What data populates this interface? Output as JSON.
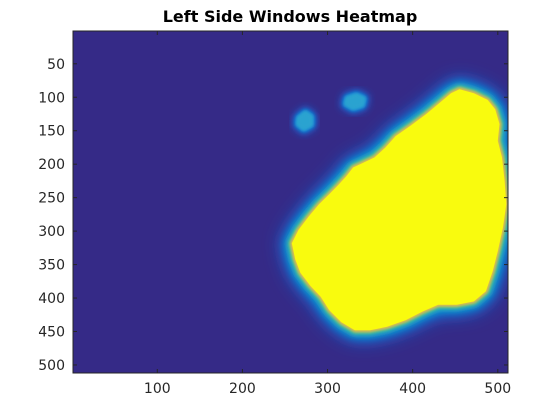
{
  "chart_data": {
    "type": "heatmap",
    "title": "Left Side Windows Heatmap",
    "xlabel": "",
    "ylabel": "",
    "xlim": [
      1,
      512
    ],
    "ylim": [
      1,
      512
    ],
    "y_reversed": true,
    "x_ticks": [
      100,
      200,
      300,
      400,
      500
    ],
    "x_tick_labels": [
      "100",
      "200",
      "300",
      "400",
      "500"
    ],
    "y_ticks": [
      50,
      100,
      150,
      200,
      250,
      300,
      350,
      400,
      450,
      500
    ],
    "y_tick_labels": [
      "50",
      "100",
      "150",
      "200",
      "250",
      "300",
      "350",
      "400",
      "450",
      "500"
    ],
    "grid": false,
    "colormap": "parula",
    "background_color": "#352a87",
    "hot_color": "#f9fb0e",
    "regions": [
      {
        "name": "main",
        "outline": [
          [
            455,
            88
          ],
          [
            472,
            94
          ],
          [
            488,
            104
          ],
          [
            497,
            118
          ],
          [
            502,
            140
          ],
          [
            500,
            165
          ],
          [
            505,
            190
          ],
          [
            508,
            225
          ],
          [
            510,
            260
          ],
          [
            506,
            295
          ],
          [
            500,
            330
          ],
          [
            494,
            360
          ],
          [
            486,
            390
          ],
          [
            472,
            405
          ],
          [
            452,
            410
          ],
          [
            430,
            410
          ],
          [
            412,
            420
          ],
          [
            392,
            433
          ],
          [
            370,
            443
          ],
          [
            350,
            448
          ],
          [
            332,
            448
          ],
          [
            316,
            436
          ],
          [
            302,
            418
          ],
          [
            292,
            398
          ],
          [
            280,
            382
          ],
          [
            268,
            362
          ],
          [
            262,
            342
          ],
          [
            258,
            318
          ],
          [
            266,
            298
          ],
          [
            278,
            278
          ],
          [
            290,
            260
          ],
          [
            302,
            245
          ],
          [
            312,
            232
          ],
          [
            322,
            218
          ],
          [
            330,
            205
          ],
          [
            342,
            198
          ],
          [
            355,
            190
          ],
          [
            368,
            175
          ],
          [
            380,
            158
          ],
          [
            398,
            142
          ],
          [
            416,
            125
          ],
          [
            432,
            108
          ],
          [
            445,
            94
          ]
        ]
      },
      {
        "name": "blob-upper",
        "outline": [
          [
            322,
            100
          ],
          [
            334,
            95
          ],
          [
            344,
            101
          ],
          [
            342,
            113
          ],
          [
            330,
            118
          ],
          [
            320,
            111
          ]
        ]
      },
      {
        "name": "blob-left",
        "outline": [
          [
            265,
            130
          ],
          [
            274,
            121
          ],
          [
            282,
            128
          ],
          [
            282,
            142
          ],
          [
            272,
            149
          ],
          [
            264,
            141
          ]
        ]
      }
    ]
  }
}
